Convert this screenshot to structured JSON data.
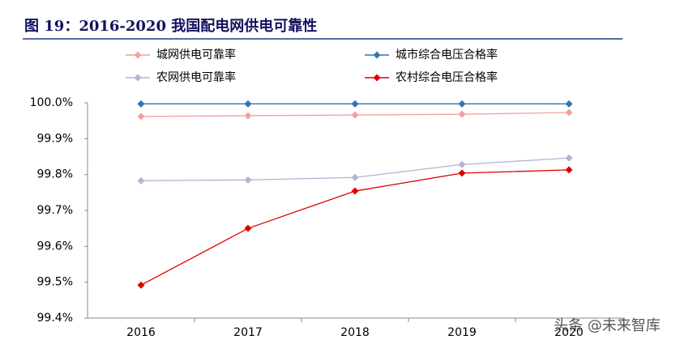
{
  "chart_data": {
    "type": "line",
    "title": "图 19：2016-2020 我国配电网供电可靠性",
    "watermark": "头条 @未来智库",
    "categories": [
      "2016",
      "2017",
      "2018",
      "2019",
      "2020"
    ],
    "series": [
      {
        "name": "城网供电可靠率",
        "color": "#f4a0a0",
        "values": [
          99.962,
          99.964,
          99.966,
          99.968,
          99.973
        ]
      },
      {
        "name": "城市综合电压合格率",
        "color": "#2e75b6",
        "values": [
          99.997,
          99.997,
          99.997,
          99.997,
          99.997
        ]
      },
      {
        "name": "农网供电可靠率",
        "color": "#b4b4d6",
        "values": [
          99.783,
          99.785,
          99.792,
          99.828,
          99.846
        ]
      },
      {
        "name": "农村综合电压合格率",
        "color": "#e00000",
        "values": [
          99.492,
          99.65,
          99.754,
          99.804,
          99.813
        ]
      }
    ],
    "ylim": [
      99.4,
      100.0
    ],
    "yticks": [
      {
        "value": 99.4,
        "label": "99.4%"
      },
      {
        "value": 99.5,
        "label": "99.5%"
      },
      {
        "value": 99.6,
        "label": "99.6%"
      },
      {
        "value": 99.7,
        "label": "99.7%"
      },
      {
        "value": 99.8,
        "label": "99.8%"
      },
      {
        "value": 99.9,
        "label": "99.9%"
      },
      {
        "value": 100.0,
        "label": "100.0%"
      }
    ],
    "grid": false
  }
}
